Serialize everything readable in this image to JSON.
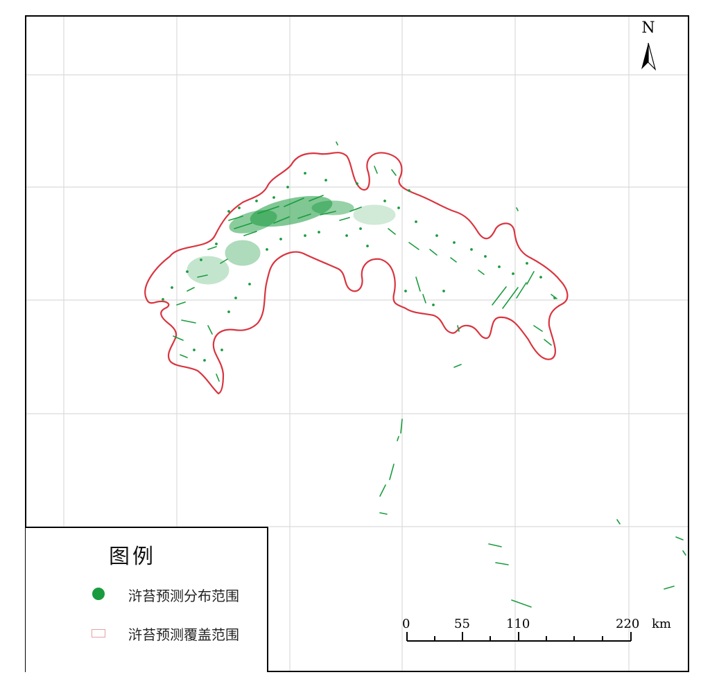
{
  "map": {
    "north_label": "N",
    "colors": {
      "prediction_distribution": "#1a9b3e",
      "prediction_coverage": "#d9343f",
      "graticule": "#d9d9d9"
    }
  },
  "legend": {
    "title": "图例",
    "items": [
      {
        "label": "浒苔预测分布范围",
        "symbol": "green-dot",
        "color": "#1a9b3e"
      },
      {
        "label": "浒苔预测覆盖范围",
        "symbol": "outline-box",
        "color": "#e3a0a4"
      }
    ]
  },
  "scale_bar": {
    "ticks": [
      "0",
      "55",
      "110",
      "220"
    ],
    "unit": "km"
  }
}
